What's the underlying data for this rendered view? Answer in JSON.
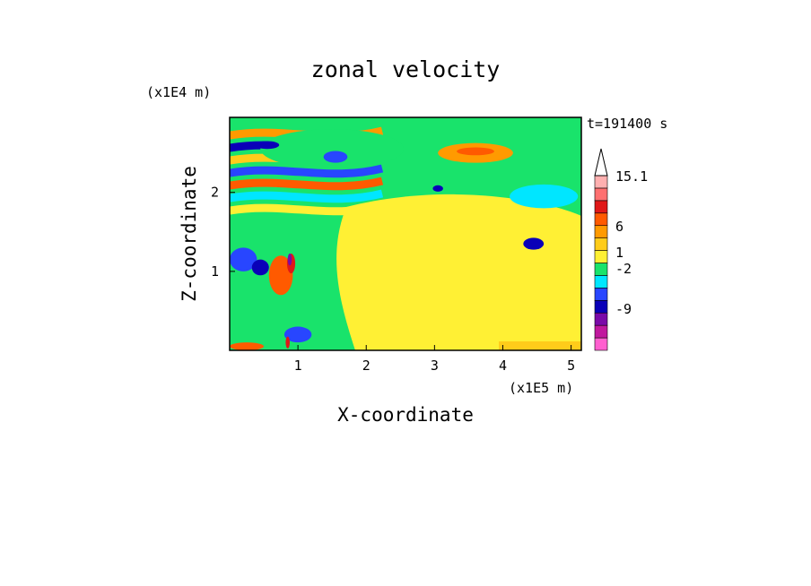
{
  "chart_data": {
    "type": "heatmap",
    "title": "zonal velocity",
    "xlabel": "X-coordinate",
    "ylabel": "Z-coordinate",
    "x_unit": "(x1E5 m)",
    "y_unit": "(x1E4 m)",
    "time_label": "t=191400 s",
    "xlim": [
      0,
      5.15
    ],
    "ylim": [
      0,
      2.95
    ],
    "x_ticks": [
      "1",
      "2",
      "3",
      "4",
      "5"
    ],
    "y_ticks": [
      "1",
      "2"
    ],
    "colorbar": {
      "labels": [
        "15.1",
        "6",
        "1",
        "-2",
        "-9"
      ],
      "colors": [
        "#ff5fcf",
        "#c0189e",
        "#7a0aa8",
        "#0a00b8",
        "#2846ff",
        "#00e6ff",
        "#19e36b",
        "#fff034",
        "#ffcc1a",
        "#ff9a00",
        "#ff5a00",
        "#e01818",
        "#ff7070",
        "#ffb0b0"
      ]
    },
    "bands": [
      {
        "color": "#19e36b",
        "x": 1.5,
        "y": 2.55,
        "w": 2.1,
        "h": 0.5
      },
      {
        "color": "#ff9a00",
        "x": 3.6,
        "y": 2.5,
        "w": 1.1,
        "h": 0.25
      },
      {
        "color": "#ff5a00",
        "x": 3.6,
        "y": 2.52,
        "w": 0.55,
        "h": 0.1
      },
      {
        "color": "#2846ff",
        "x": 1.55,
        "y": 2.45,
        "w": 0.35,
        "h": 0.15
      },
      {
        "color": "#0a00b8",
        "x": 0.55,
        "y": 2.6,
        "w": 0.35,
        "h": 0.1
      },
      {
        "color": "#0a00b8",
        "x": 3.05,
        "y": 2.05,
        "w": 0.15,
        "h": 0.08
      },
      {
        "color": "#0a00b8",
        "x": 4.45,
        "y": 1.35,
        "w": 0.3,
        "h": 0.15
      },
      {
        "color": "#00e6ff",
        "x": 4.6,
        "y": 1.95,
        "w": 1.0,
        "h": 0.3
      },
      {
        "color": "#ff5a00",
        "x": 0.75,
        "y": 0.95,
        "w": 0.35,
        "h": 0.5
      },
      {
        "color": "#e01818",
        "x": 0.9,
        "y": 1.1,
        "w": 0.12,
        "h": 0.25
      },
      {
        "color": "#7a0aa8",
        "x": 0.88,
        "y": 1.15,
        "w": 0.06,
        "h": 0.15
      },
      {
        "color": "#2846ff",
        "x": 0.2,
        "y": 1.15,
        "w": 0.4,
        "h": 0.3
      },
      {
        "color": "#0a00b8",
        "x": 0.45,
        "y": 1.05,
        "w": 0.25,
        "h": 0.2
      },
      {
        "color": "#2846ff",
        "x": 1.0,
        "y": 0.2,
        "w": 0.4,
        "h": 0.2
      },
      {
        "color": "#ff5a00",
        "x": 0.25,
        "y": 0.05,
        "w": 0.5,
        "h": 0.1
      },
      {
        "color": "#e01818",
        "x": 0.85,
        "y": 0.1,
        "w": 0.06,
        "h": 0.15
      }
    ]
  }
}
